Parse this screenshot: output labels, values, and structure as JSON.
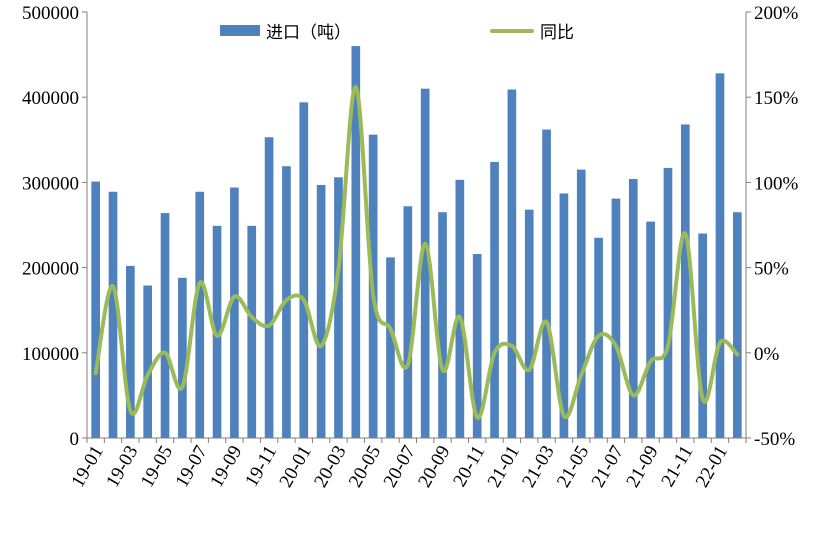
{
  "chart_data": {
    "type": "bar+line",
    "title": "",
    "xlabel": "",
    "colors": {
      "bar": "#4F81BD",
      "line": "#9BBB59"
    },
    "categories": [
      "19-01",
      "19-02",
      "19-03",
      "19-04",
      "19-05",
      "19-06",
      "19-07",
      "19-08",
      "19-09",
      "19-10",
      "19-11",
      "19-12",
      "20-01",
      "20-02",
      "20-03",
      "20-04",
      "20-05",
      "20-06",
      "20-07",
      "20-08",
      "20-09",
      "20-10",
      "20-11",
      "20-12",
      "21-01",
      "21-02",
      "21-03",
      "21-04",
      "21-05",
      "21-06",
      "21-07",
      "21-08",
      "21-09",
      "21-10",
      "21-11",
      "21-12",
      "22-01",
      "22-02"
    ],
    "x_tick_labels": [
      "19-01",
      "19-03",
      "19-05",
      "19-07",
      "19-09",
      "19-11",
      "20-01",
      "20-03",
      "20-05",
      "20-07",
      "20-09",
      "20-11",
      "21-01",
      "21-03",
      "21-05",
      "21-07",
      "21-09",
      "21-11",
      "22-01"
    ],
    "series": [
      {
        "name": "进口（吨）",
        "type": "bar",
        "axis": "left",
        "values": [
          301000,
          289000,
          202000,
          179000,
          264000,
          188000,
          289000,
          249000,
          294000,
          249000,
          353000,
          319000,
          394000,
          297000,
          306000,
          460000,
          356000,
          212000,
          272000,
          410000,
          265000,
          303000,
          216000,
          324000,
          409000,
          268000,
          362000,
          287000,
          315000,
          235000,
          281000,
          304000,
          254000,
          317000,
          368000,
          240000,
          428000,
          265000
        ]
      },
      {
        "name": "同比",
        "type": "line",
        "axis": "right",
        "values": [
          -12,
          39,
          -34,
          -13,
          0,
          -20,
          41,
          10,
          33,
          21,
          16,
          31,
          31,
          4,
          49,
          156,
          34,
          14,
          -7,
          64,
          -10,
          21,
          -38,
          0,
          4,
          -10,
          18,
          -37,
          -13,
          10,
          4,
          -25,
          -5,
          4,
          70,
          -27,
          6,
          -1
        ]
      }
    ],
    "y_left": {
      "min": 0,
      "max": 500000,
      "ticks": [
        0,
        100000,
        200000,
        300000,
        400000,
        500000
      ],
      "tick_labels": [
        "0",
        "100000",
        "200000",
        "300000",
        "400000",
        "500000"
      ]
    },
    "y_right": {
      "min": -50,
      "max": 200,
      "ticks": [
        -50,
        0,
        50,
        100,
        150,
        200
      ],
      "tick_labels": [
        "-50%",
        "0%",
        "50%",
        "100%",
        "150%",
        "200%"
      ]
    },
    "grid": false,
    "legend_position": "top-center"
  }
}
